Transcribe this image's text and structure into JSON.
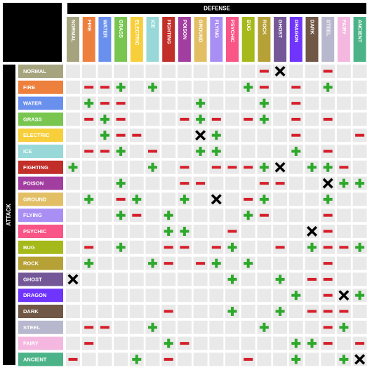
{
  "header": {
    "defense": "DEFENSE",
    "attack": "ATTACK"
  },
  "types": [
    {
      "name": "NORMAL",
      "color": "#a5a47f"
    },
    {
      "name": "FIRE",
      "color": "#ee803e"
    },
    {
      "name": "WATER",
      "color": "#6a90ee"
    },
    {
      "name": "GRASS",
      "color": "#78c650"
    },
    {
      "name": "ELECTRIC",
      "color": "#f7cf3a"
    },
    {
      "name": "ICE",
      "color": "#98d8d8"
    },
    {
      "name": "FIGHTING",
      "color": "#c22e28"
    },
    {
      "name": "POISON",
      "color": "#a33ea1"
    },
    {
      "name": "GROUND",
      "color": "#e2bf65"
    },
    {
      "name": "FLYING",
      "color": "#a98ff3"
    },
    {
      "name": "PSYCHIC",
      "color": "#f95587"
    },
    {
      "name": "BUG",
      "color": "#a6b91a"
    },
    {
      "name": "ROCK",
      "color": "#b6a136"
    },
    {
      "name": "GHOST",
      "color": "#735797"
    },
    {
      "name": "DRAGON",
      "color": "#6f35fc"
    },
    {
      "name": "DARK",
      "color": "#705746"
    },
    {
      "name": "STEEL",
      "color": "#b7b7ce"
    },
    {
      "name": "FAIRY",
      "color": "#f4b8e0"
    },
    {
      "name": "ANCIENT",
      "color": "#4cb388"
    }
  ],
  "effectiveness": [
    [
      1,
      1,
      1,
      1,
      1,
      1,
      1,
      1,
      1,
      1,
      1,
      1,
      0.5,
      0,
      1,
      1,
      0.5,
      1,
      1
    ],
    [
      1,
      0.5,
      0.5,
      2,
      1,
      2,
      1,
      1,
      1,
      1,
      1,
      2,
      0.5,
      1,
      0.5,
      1,
      2,
      1,
      1
    ],
    [
      1,
      2,
      0.5,
      0.5,
      1,
      1,
      1,
      1,
      2,
      1,
      1,
      1,
      2,
      1,
      0.5,
      1,
      1,
      1,
      1
    ],
    [
      1,
      0.5,
      2,
      0.5,
      1,
      1,
      1,
      0.5,
      2,
      0.5,
      1,
      0.5,
      2,
      1,
      0.5,
      1,
      0.5,
      1,
      1
    ],
    [
      1,
      1,
      2,
      0.5,
      0.5,
      1,
      1,
      1,
      0,
      2,
      1,
      1,
      1,
      1,
      0.5,
      1,
      1,
      1,
      0.5
    ],
    [
      1,
      0.5,
      0.5,
      2,
      1,
      0.5,
      1,
      1,
      2,
      2,
      1,
      1,
      1,
      1,
      2,
      1,
      0.5,
      1,
      1
    ],
    [
      2,
      1,
      1,
      1,
      1,
      2,
      1,
      0.5,
      1,
      0.5,
      0.5,
      0.5,
      2,
      0,
      1,
      2,
      2,
      0.5,
      1
    ],
    [
      1,
      1,
      1,
      2,
      1,
      1,
      1,
      0.5,
      0.5,
      1,
      1,
      1,
      0.5,
      0.5,
      1,
      1,
      0,
      2,
      2
    ],
    [
      1,
      2,
      1,
      0.5,
      2,
      1,
      1,
      2,
      1,
      0,
      1,
      0.5,
      2,
      1,
      1,
      1,
      2,
      1,
      1
    ],
    [
      1,
      1,
      1,
      2,
      0.5,
      1,
      2,
      1,
      1,
      1,
      1,
      2,
      0.5,
      1,
      1,
      1,
      0.5,
      1,
      1
    ],
    [
      1,
      1,
      1,
      1,
      1,
      1,
      2,
      2,
      1,
      1,
      0.5,
      1,
      1,
      1,
      1,
      0,
      0.5,
      1,
      1
    ],
    [
      1,
      0.5,
      1,
      2,
      1,
      1,
      0.5,
      0.5,
      1,
      0.5,
      2,
      1,
      1,
      0.5,
      1,
      2,
      0.5,
      0.5,
      2
    ],
    [
      1,
      2,
      1,
      1,
      1,
      2,
      0.5,
      1,
      0.5,
      2,
      1,
      2,
      1,
      1,
      1,
      1,
      0.5,
      1,
      1
    ],
    [
      0,
      1,
      1,
      1,
      1,
      1,
      1,
      1,
      1,
      1,
      2,
      1,
      1,
      2,
      1,
      0.5,
      0.5,
      1,
      1
    ],
    [
      1,
      1,
      1,
      1,
      1,
      1,
      1,
      1,
      1,
      1,
      1,
      1,
      1,
      1,
      2,
      1,
      0.5,
      0,
      2
    ],
    [
      1,
      1,
      1,
      1,
      1,
      1,
      0.5,
      1,
      1,
      1,
      2,
      1,
      1,
      2,
      1,
      0.5,
      0.5,
      0.5,
      1
    ],
    [
      1,
      0.5,
      0.5,
      1,
      1,
      2,
      1,
      1,
      1,
      1,
      1,
      1,
      2,
      1,
      1,
      1,
      0.5,
      2,
      1
    ],
    [
      1,
      0.5,
      1,
      1,
      1,
      1,
      2,
      0.5,
      1,
      1,
      1,
      1,
      1,
      1,
      2,
      2,
      0.5,
      1,
      0.5
    ],
    [
      0.5,
      1,
      1,
      1,
      2,
      1,
      0.5,
      1,
      1,
      1,
      1,
      0.5,
      1,
      1,
      2,
      1,
      1,
      2,
      0
    ]
  ]
}
